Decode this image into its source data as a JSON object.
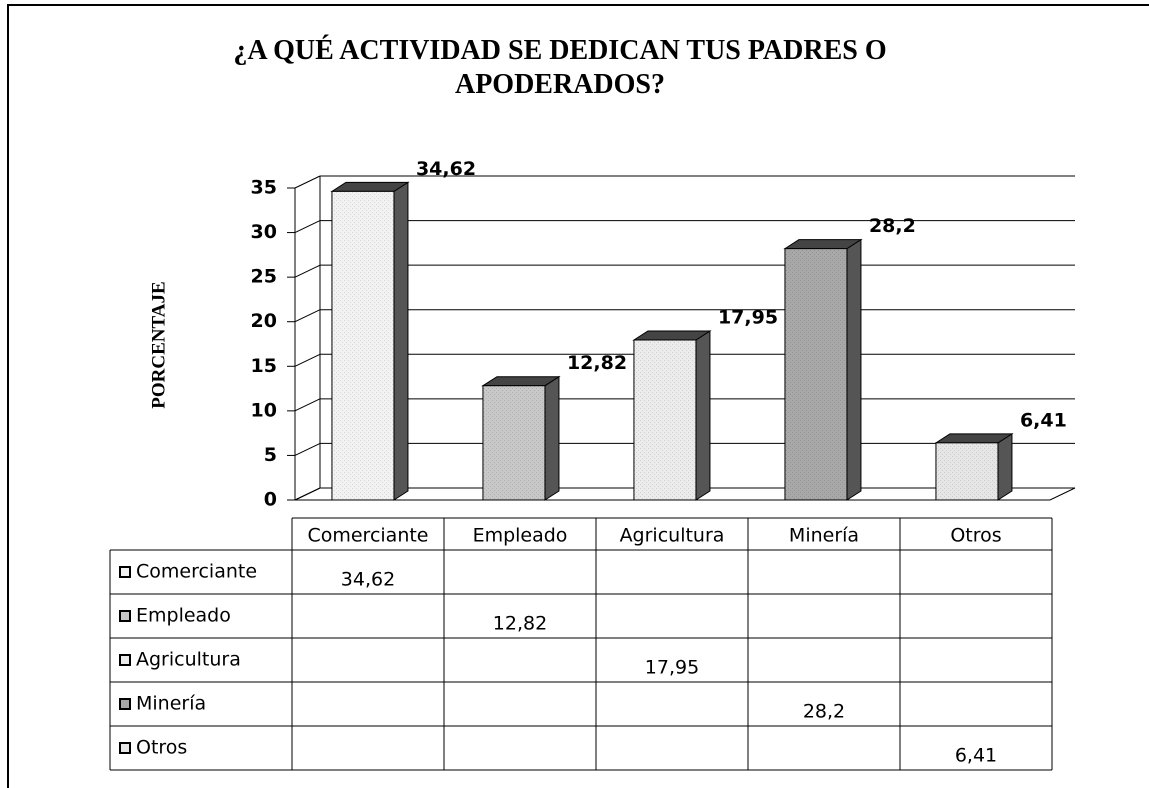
{
  "chart_data": {
    "type": "bar3d",
    "title": "¿A QUÉ ACTIVIDAD SE DEDICAN TUS PADRES O APODERADOS?",
    "y_label": "PORCENTAJE",
    "categories": [
      "Comerciante",
      "Empleado",
      "Agricultura",
      "Minería",
      "Otros"
    ],
    "values": [
      34.62,
      12.82,
      17.95,
      28.2,
      6.41
    ],
    "value_labels": [
      "34,62",
      "12,82",
      "17,95",
      "28,2",
      "6,41"
    ],
    "colors": [
      "#f2f2f2",
      "#c8c8c8",
      "#ececec",
      "#a8a8a8",
      "#e6e6e6"
    ],
    "ylim": [
      0,
      35
    ],
    "yticks": [
      0,
      5,
      10,
      15,
      20,
      25,
      30,
      35
    ],
    "grid": true,
    "data_table": true
  }
}
